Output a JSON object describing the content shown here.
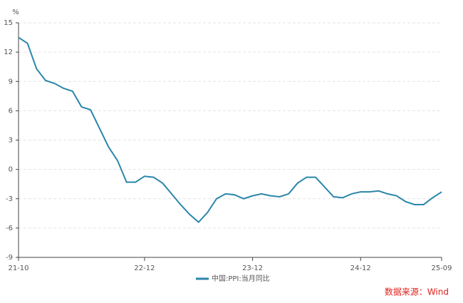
{
  "chart_data": {
    "type": "line",
    "y_unit": "%",
    "categories": [
      "21-10",
      null,
      null,
      null,
      null,
      null,
      null,
      null,
      null,
      null,
      null,
      null,
      null,
      null,
      "22-12",
      null,
      null,
      null,
      null,
      null,
      null,
      null,
      null,
      null,
      null,
      null,
      "23-12",
      null,
      null,
      null,
      null,
      null,
      null,
      null,
      null,
      null,
      null,
      null,
      "24-12",
      null,
      null,
      null,
      null,
      null,
      null,
      null,
      null,
      "25-09"
    ],
    "series": [
      {
        "name": "中国:PPI:当月同比",
        "color": "#2b86a9",
        "values": [
          13.5,
          12.9,
          10.3,
          9.1,
          8.8,
          8.3,
          8.0,
          6.4,
          6.1,
          4.2,
          2.3,
          0.9,
          -1.3,
          -1.3,
          -0.7,
          -0.8,
          -1.4,
          -2.5,
          -3.6,
          -4.6,
          -5.4,
          -4.4,
          -3.0,
          -2.5,
          -2.6,
          -3.0,
          -2.7,
          -2.5,
          -2.7,
          -2.8,
          -2.5,
          -1.4,
          -0.8,
          -0.8,
          -1.8,
          -2.8,
          -2.9,
          -2.5,
          -2.3,
          -2.3,
          -2.2,
          -2.5,
          -2.7,
          -3.3,
          -3.6,
          -3.6,
          -2.9,
          -2.3
        ]
      }
    ],
    "ylim": [
      -9,
      15
    ],
    "yticks": [
      -9,
      -6,
      -3,
      0,
      3,
      6,
      9,
      12,
      15
    ],
    "grid": true,
    "legend": "bottom",
    "source": "数据来源：Wind"
  }
}
